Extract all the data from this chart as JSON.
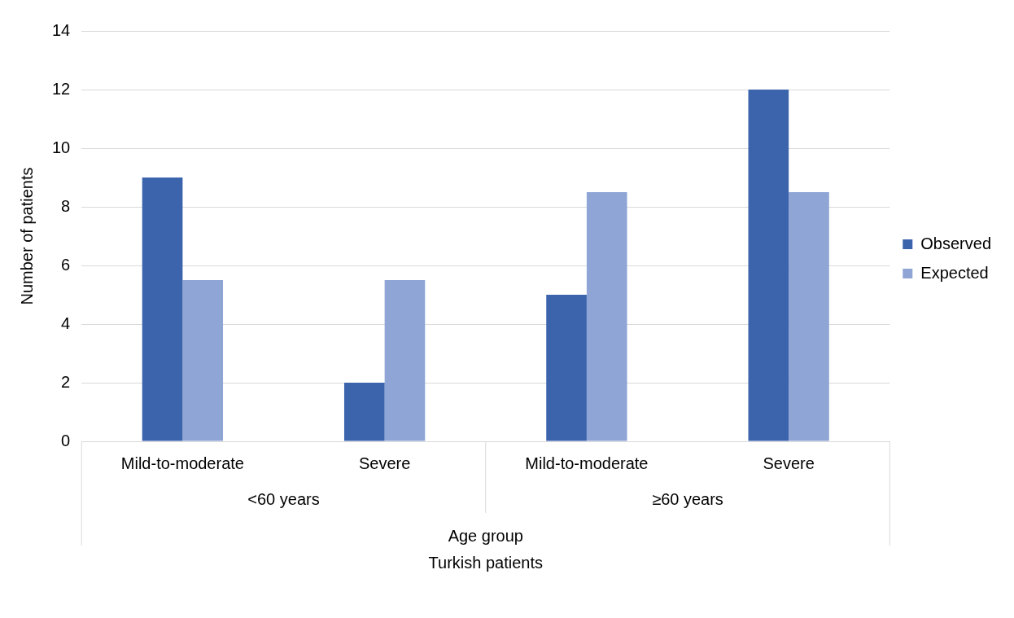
{
  "chart_data": {
    "type": "bar",
    "ylabel": "Number of patients",
    "xlabel": "Age group",
    "categories": [
      "Mild-to-moderate",
      "Severe",
      "Mild-to-moderate",
      "Severe"
    ],
    "series": [
      {
        "name": "Observed",
        "color": "#3c64ad",
        "values": [
          9,
          2,
          5,
          12
        ]
      },
      {
        "name": "Expected",
        "color": "#8fa5d6",
        "values": [
          5.5,
          5.5,
          8.5,
          8.5
        ]
      }
    ],
    "ylim": [
      0,
      14
    ],
    "yticks": [
      0,
      2,
      4,
      6,
      8,
      10,
      12,
      14
    ],
    "grid": "y",
    "legend": "right",
    "annotations": [
      "<60 years",
      "≥60 years",
      "Turkish patients"
    ]
  }
}
